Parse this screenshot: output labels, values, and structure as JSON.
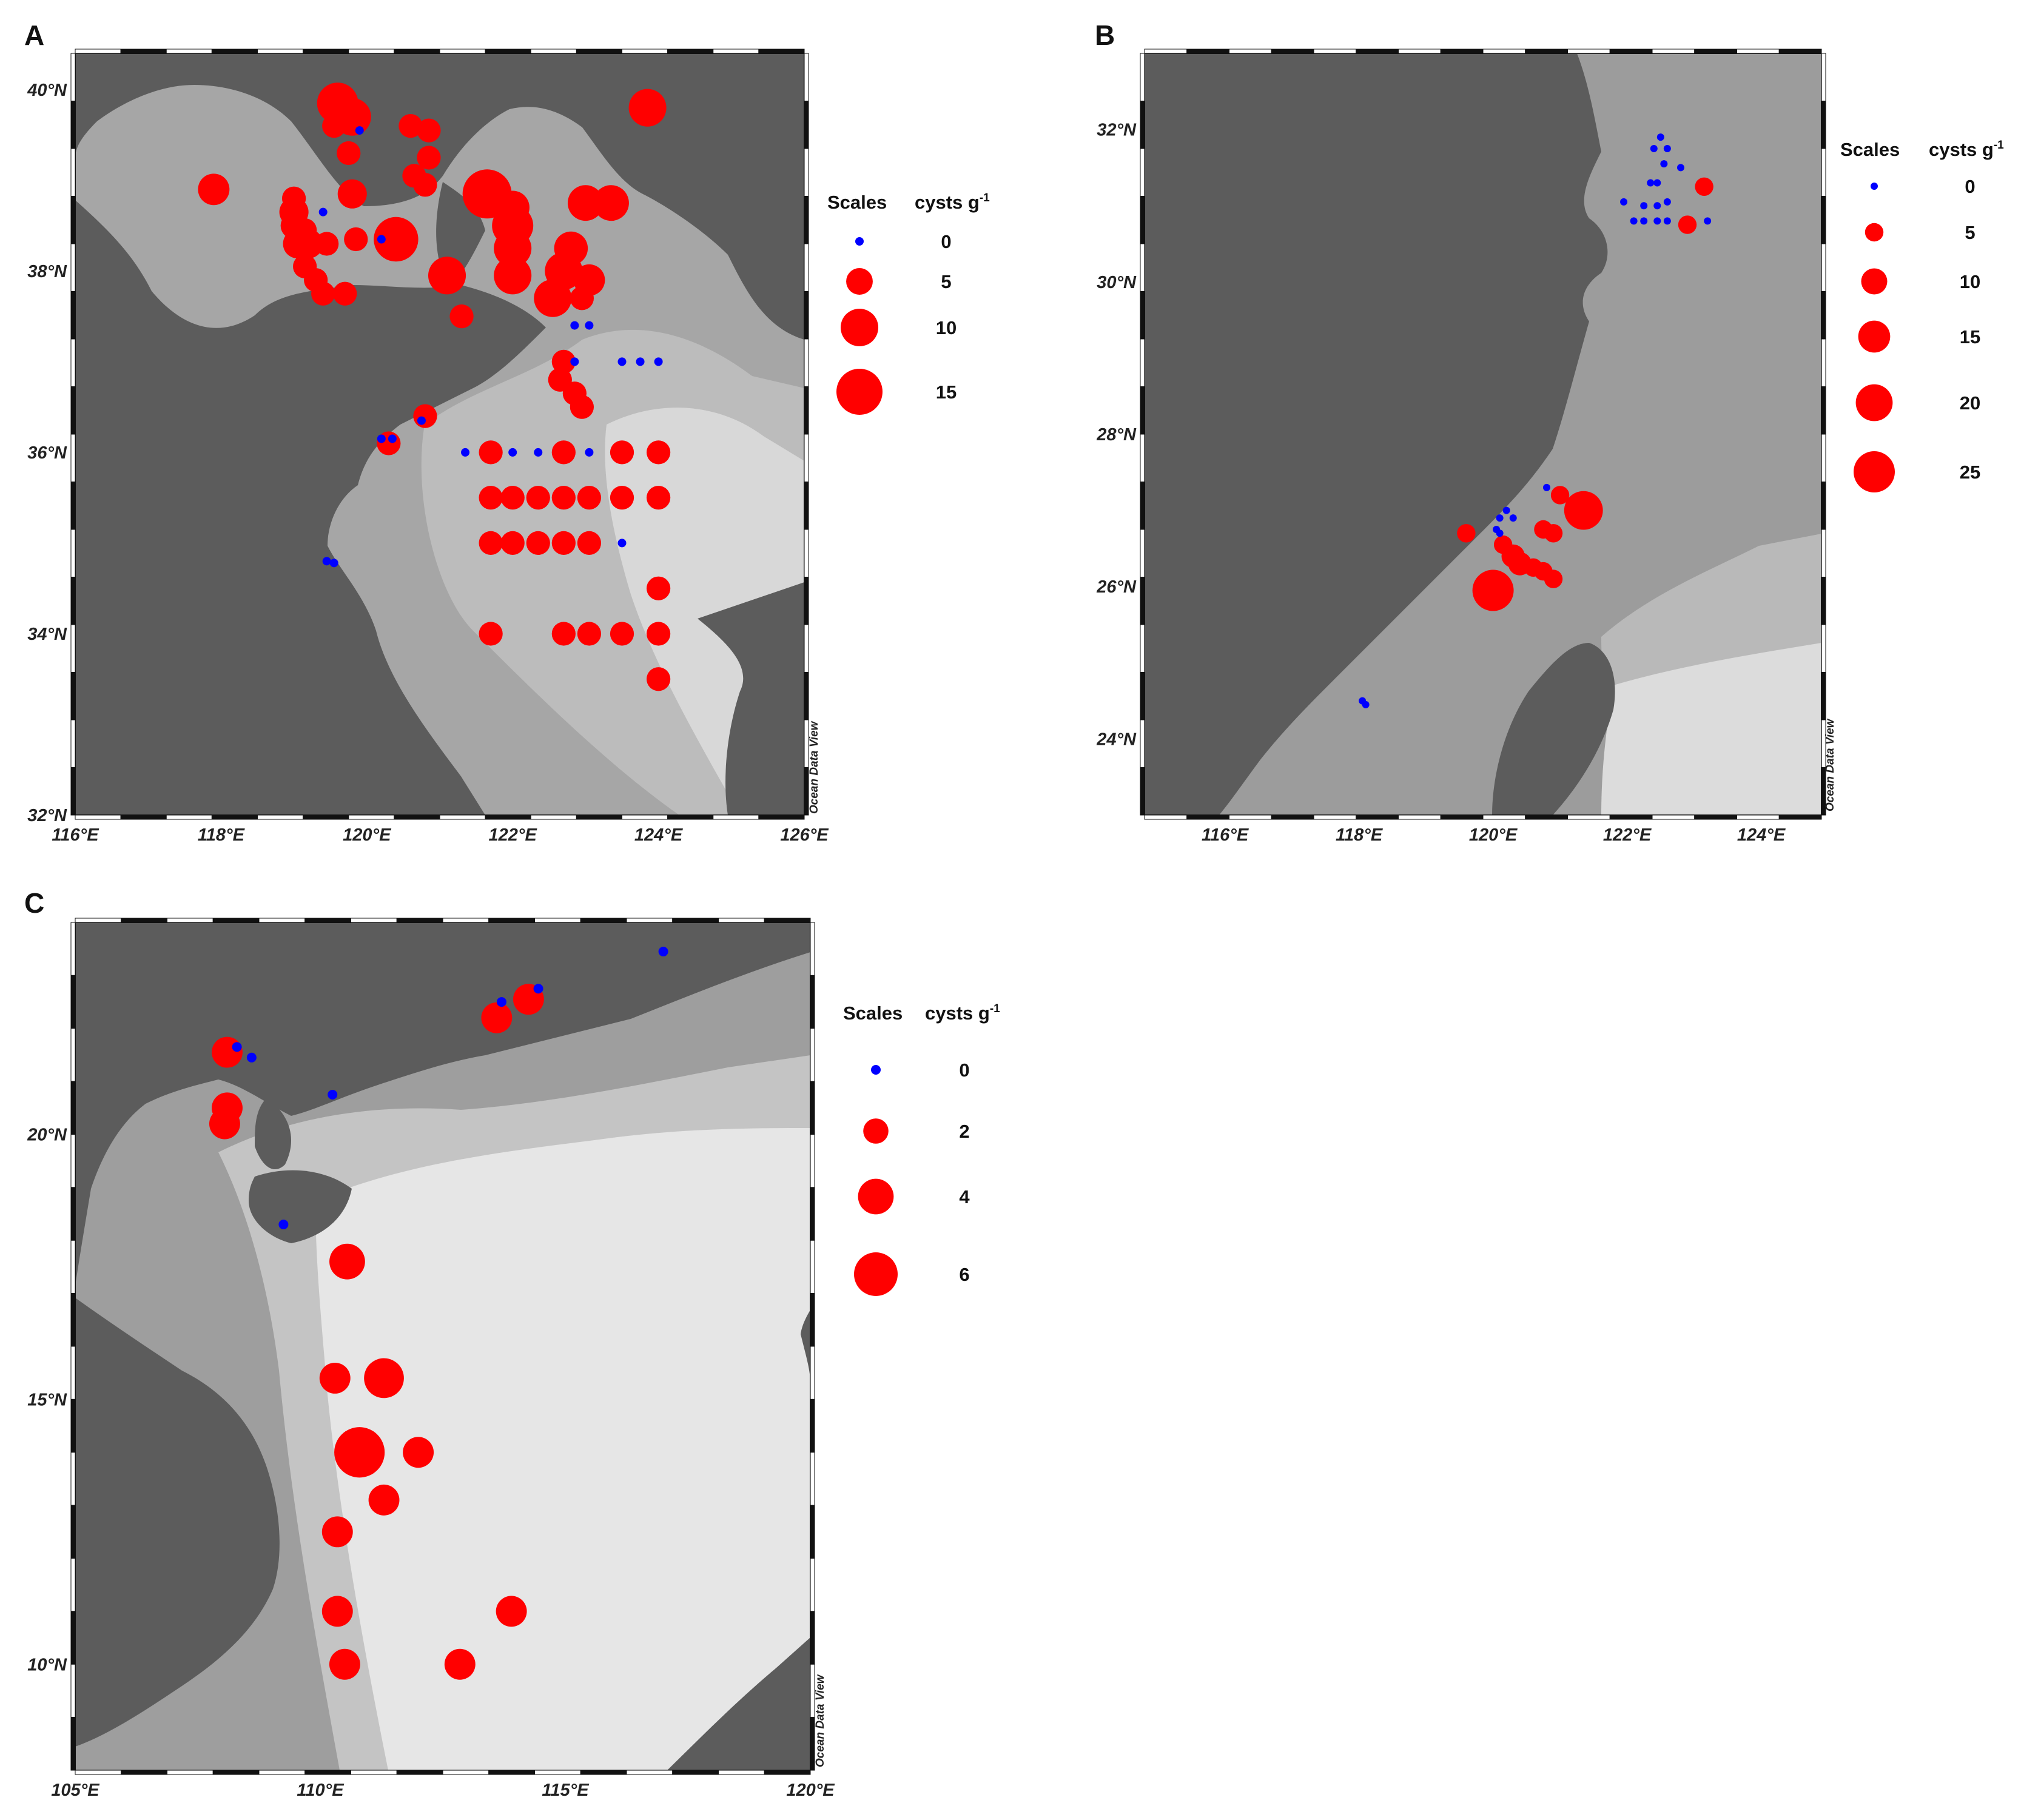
{
  "colors": {
    "land": "#5c5c5c",
    "sea_shallow": "#9a9a9a",
    "sea_mid": "#bdbdbd",
    "sea_deep": "#e3e3e3",
    "positive": "#ff0000",
    "zero": "#0000ff",
    "frame": "#111111"
  },
  "watermark": "Ocean Data View",
  "legend_labels": {
    "scales": "Scales",
    "unit_prefix": "cysts g",
    "unit_sup": "-1"
  },
  "panels": [
    {
      "id": "A",
      "letter": "A",
      "lon_range": [
        116,
        126
      ],
      "lat_range": [
        32,
        40.4
      ],
      "x_ticks": [
        "116°E",
        "118°E",
        "120°E",
        "122°E",
        "124°E",
        "126°E"
      ],
      "x_tick_values": [
        116,
        118,
        120,
        122,
        124,
        126
      ],
      "y_ticks": [
        "32°N",
        "34°N",
        "36°N",
        "38°N",
        "40°N"
      ],
      "y_tick_values": [
        32,
        34,
        36,
        38,
        40
      ],
      "legend": {
        "values": [
          "0",
          "5",
          "10",
          "15"
        ],
        "numbers": [
          0,
          5,
          10,
          15
        ]
      },
      "stations": [
        {
          "lon": 119.6,
          "lat": 39.85,
          "v": 12
        },
        {
          "lon": 119.8,
          "lat": 39.7,
          "v": 10
        },
        {
          "lon": 119.9,
          "lat": 39.55,
          "v": 0
        },
        {
          "lon": 119.55,
          "lat": 39.6,
          "v": 4
        },
        {
          "lon": 119.75,
          "lat": 39.3,
          "v": 4
        },
        {
          "lon": 119.8,
          "lat": 38.85,
          "v": 6
        },
        {
          "lon": 119.4,
          "lat": 38.65,
          "v": 0
        },
        {
          "lon": 117.9,
          "lat": 38.9,
          "v": 7
        },
        {
          "lon": 119.0,
          "lat": 38.8,
          "v": 4
        },
        {
          "lon": 119.0,
          "lat": 38.65,
          "v": 6
        },
        {
          "lon": 119.0,
          "lat": 38.5,
          "v": 5
        },
        {
          "lon": 119.15,
          "lat": 38.45,
          "v": 4
        },
        {
          "lon": 119.05,
          "lat": 38.3,
          "v": 6
        },
        {
          "lon": 119.2,
          "lat": 38.3,
          "v": 6
        },
        {
          "lon": 119.45,
          "lat": 38.3,
          "v": 4
        },
        {
          "lon": 119.85,
          "lat": 38.35,
          "v": 4
        },
        {
          "lon": 120.2,
          "lat": 38.35,
          "v": 0
        },
        {
          "lon": 119.15,
          "lat": 38.05,
          "v": 4
        },
        {
          "lon": 119.3,
          "lat": 37.9,
          "v": 4
        },
        {
          "lon": 119.4,
          "lat": 37.75,
          "v": 4
        },
        {
          "lon": 119.7,
          "lat": 37.75,
          "v": 4
        },
        {
          "lon": 120.4,
          "lat": 38.35,
          "v": 14
        },
        {
          "lon": 120.6,
          "lat": 39.6,
          "v": 4
        },
        {
          "lon": 120.85,
          "lat": 39.55,
          "v": 4
        },
        {
          "lon": 120.85,
          "lat": 39.25,
          "v": 4
        },
        {
          "lon": 120.65,
          "lat": 39.05,
          "v": 4
        },
        {
          "lon": 120.8,
          "lat": 38.95,
          "v": 4
        },
        {
          "lon": 121.1,
          "lat": 37.95,
          "v": 10
        },
        {
          "lon": 121.3,
          "lat": 37.5,
          "v": 4
        },
        {
          "lon": 121.65,
          "lat": 38.85,
          "v": 17
        },
        {
          "lon": 122.0,
          "lat": 38.7,
          "v": 8
        },
        {
          "lon": 122.0,
          "lat": 38.5,
          "v": 12
        },
        {
          "lon": 122.0,
          "lat": 38.25,
          "v": 10
        },
        {
          "lon": 122.0,
          "lat": 37.95,
          "v": 10
        },
        {
          "lon": 122.55,
          "lat": 37.7,
          "v": 10
        },
        {
          "lon": 122.7,
          "lat": 38.0,
          "v": 10
        },
        {
          "lon": 122.8,
          "lat": 38.25,
          "v": 8
        },
        {
          "lon": 123.0,
          "lat": 38.75,
          "v": 9
        },
        {
          "lon": 123.35,
          "lat": 38.75,
          "v": 9
        },
        {
          "lon": 123.05,
          "lat": 37.9,
          "v": 7
        },
        {
          "lon": 122.95,
          "lat": 37.7,
          "v": 4
        },
        {
          "lon": 123.85,
          "lat": 39.8,
          "v": 10
        },
        {
          "lon": 122.85,
          "lat": 37.4,
          "v": 0
        },
        {
          "lon": 123.05,
          "lat": 37.4,
          "v": 0
        },
        {
          "lon": 122.7,
          "lat": 37.0,
          "v": 4
        },
        {
          "lon": 122.85,
          "lat": 37.0,
          "v": 0
        },
        {
          "lon": 122.65,
          "lat": 36.8,
          "v": 4
        },
        {
          "lon": 122.85,
          "lat": 36.65,
          "v": 4
        },
        {
          "lon": 122.95,
          "lat": 36.5,
          "v": 4
        },
        {
          "lon": 123.5,
          "lat": 37.0,
          "v": 0
        },
        {
          "lon": 123.75,
          "lat": 37.0,
          "v": 0
        },
        {
          "lon": 124.0,
          "lat": 37.0,
          "v": 0
        },
        {
          "lon": 120.2,
          "lat": 36.15,
          "v": 0
        },
        {
          "lon": 120.3,
          "lat": 36.1,
          "v": 4
        },
        {
          "lon": 120.35,
          "lat": 36.15,
          "v": 0
        },
        {
          "lon": 120.75,
          "lat": 36.35,
          "v": 0
        },
        {
          "lon": 120.8,
          "lat": 36.4,
          "v": 4
        },
        {
          "lon": 121.35,
          "lat": 36.0,
          "v": 0
        },
        {
          "lon": 121.7,
          "lat": 36.0,
          "v": 4
        },
        {
          "lon": 122.0,
          "lat": 36.0,
          "v": 0
        },
        {
          "lon": 122.35,
          "lat": 36.0,
          "v": 0
        },
        {
          "lon": 122.7,
          "lat": 36.0,
          "v": 4
        },
        {
          "lon": 123.05,
          "lat": 36.0,
          "v": 0
        },
        {
          "lon": 123.5,
          "lat": 36.0,
          "v": 4
        },
        {
          "lon": 124.0,
          "lat": 36.0,
          "v": 4
        },
        {
          "lon": 121.7,
          "lat": 35.5,
          "v": 4
        },
        {
          "lon": 122.0,
          "lat": 35.5,
          "v": 4
        },
        {
          "lon": 122.35,
          "lat": 35.5,
          "v": 4
        },
        {
          "lon": 122.7,
          "lat": 35.5,
          "v": 4
        },
        {
          "lon": 123.05,
          "lat": 35.5,
          "v": 4
        },
        {
          "lon": 123.5,
          "lat": 35.5,
          "v": 4
        },
        {
          "lon": 124.0,
          "lat": 35.5,
          "v": 4
        },
        {
          "lon": 121.7,
          "lat": 35.0,
          "v": 4
        },
        {
          "lon": 122.0,
          "lat": 35.0,
          "v": 4
        },
        {
          "lon": 122.35,
          "lat": 35.0,
          "v": 4
        },
        {
          "lon": 122.7,
          "lat": 35.0,
          "v": 4
        },
        {
          "lon": 123.05,
          "lat": 35.0,
          "v": 4
        },
        {
          "lon": 123.5,
          "lat": 35.0,
          "v": 0
        },
        {
          "lon": 124.0,
          "lat": 34.5,
          "v": 4
        },
        {
          "lon": 121.7,
          "lat": 34.0,
          "v": 4
        },
        {
          "lon": 122.7,
          "lat": 34.0,
          "v": 4
        },
        {
          "lon": 123.05,
          "lat": 34.0,
          "v": 4
        },
        {
          "lon": 123.5,
          "lat": 34.0,
          "v": 4
        },
        {
          "lon": 124.0,
          "lat": 34.0,
          "v": 4
        },
        {
          "lon": 124.0,
          "lat": 33.5,
          "v": 4
        },
        {
          "lon": 119.45,
          "lat": 34.8,
          "v": 0
        },
        {
          "lon": 119.55,
          "lat": 34.78,
          "v": 0
        }
      ]
    },
    {
      "id": "B",
      "letter": "B",
      "lon_range": [
        114.8,
        124.9
      ],
      "lat_range": [
        23.0,
        33.0
      ],
      "x_ticks": [
        "116°E",
        "118°E",
        "120°E",
        "122°E",
        "124°E"
      ],
      "x_tick_values": [
        116,
        118,
        120,
        122,
        124
      ],
      "y_ticks": [
        "24°N",
        "26°N",
        "28°N",
        "30°N",
        "32°N"
      ],
      "y_tick_values": [
        24,
        26,
        28,
        30,
        32
      ],
      "legend": {
        "values": [
          "0",
          "5",
          "10",
          "15",
          "20",
          "25"
        ],
        "numbers": [
          0,
          5,
          10,
          15,
          20,
          25
        ]
      },
      "stations": [
        {
          "lon": 122.5,
          "lat": 31.9,
          "v": 0
        },
        {
          "lon": 122.4,
          "lat": 31.75,
          "v": 0
        },
        {
          "lon": 122.6,
          "lat": 31.75,
          "v": 0
        },
        {
          "lon": 122.55,
          "lat": 31.55,
          "v": 0
        },
        {
          "lon": 122.8,
          "lat": 31.5,
          "v": 0
        },
        {
          "lon": 122.35,
          "lat": 31.3,
          "v": 0
        },
        {
          "lon": 122.45,
          "lat": 31.3,
          "v": 0
        },
        {
          "lon": 121.95,
          "lat": 31.05,
          "v": 0
        },
        {
          "lon": 122.25,
          "lat": 31.0,
          "v": 0
        },
        {
          "lon": 122.45,
          "lat": 31.0,
          "v": 0
        },
        {
          "lon": 122.6,
          "lat": 31.05,
          "v": 0
        },
        {
          "lon": 122.1,
          "lat": 30.8,
          "v": 0
        },
        {
          "lon": 122.25,
          "lat": 30.8,
          "v": 0
        },
        {
          "lon": 122.45,
          "lat": 30.8,
          "v": 0
        },
        {
          "lon": 122.6,
          "lat": 30.8,
          "v": 0
        },
        {
          "lon": 123.2,
          "lat": 30.8,
          "v": 0
        },
        {
          "lon": 122.9,
          "lat": 30.75,
          "v": 5
        },
        {
          "lon": 123.15,
          "lat": 31.25,
          "v": 5
        },
        {
          "lon": 121.35,
          "lat": 27.0,
          "v": 22
        },
        {
          "lon": 120.0,
          "lat": 25.95,
          "v": 25
        },
        {
          "lon": 120.8,
          "lat": 27.3,
          "v": 0
        },
        {
          "lon": 121.0,
          "lat": 27.2,
          "v": 5
        },
        {
          "lon": 120.2,
          "lat": 27.0,
          "v": 0
        },
        {
          "lon": 120.1,
          "lat": 26.9,
          "v": 0
        },
        {
          "lon": 120.3,
          "lat": 26.9,
          "v": 0
        },
        {
          "lon": 120.05,
          "lat": 26.75,
          "v": 0
        },
        {
          "lon": 120.1,
          "lat": 26.7,
          "v": 0
        },
        {
          "lon": 119.6,
          "lat": 26.7,
          "v": 5
        },
        {
          "lon": 120.75,
          "lat": 26.75,
          "v": 5
        },
        {
          "lon": 120.9,
          "lat": 26.7,
          "v": 5
        },
        {
          "lon": 120.15,
          "lat": 26.55,
          "v": 5
        },
        {
          "lon": 120.3,
          "lat": 26.4,
          "v": 8
        },
        {
          "lon": 120.4,
          "lat": 26.3,
          "v": 8
        },
        {
          "lon": 120.6,
          "lat": 26.25,
          "v": 5
        },
        {
          "lon": 120.75,
          "lat": 26.2,
          "v": 5
        },
        {
          "lon": 120.9,
          "lat": 26.1,
          "v": 5
        },
        {
          "lon": 118.05,
          "lat": 24.5,
          "v": 0
        },
        {
          "lon": 118.1,
          "lat": 24.45,
          "v": 0
        }
      ]
    },
    {
      "id": "C",
      "letter": "C",
      "lon_range": [
        105,
        120
      ],
      "lat_range": [
        8.0,
        24.0
      ],
      "x_ticks": [
        "105°E",
        "110°E",
        "115°E",
        "120°E"
      ],
      "x_tick_values": [
        105,
        110,
        115,
        120
      ],
      "y_ticks": [
        "10°N",
        "15°N",
        "20°N"
      ],
      "y_tick_values": [
        10,
        15,
        20
      ],
      "legend": {
        "values": [
          "0",
          "2",
          "4",
          "6"
        ],
        "numbers": [
          0,
          2,
          4,
          6
        ]
      },
      "stations": [
        {
          "lon": 108.1,
          "lat": 21.55,
          "v": 3
        },
        {
          "lon": 108.3,
          "lat": 21.65,
          "v": 0
        },
        {
          "lon": 108.6,
          "lat": 21.45,
          "v": 0
        },
        {
          "lon": 108.1,
          "lat": 20.5,
          "v": 3
        },
        {
          "lon": 108.05,
          "lat": 20.2,
          "v": 3
        },
        {
          "lon": 109.25,
          "lat": 18.3,
          "v": 0
        },
        {
          "lon": 110.25,
          "lat": 20.75,
          "v": 0
        },
        {
          "lon": 113.6,
          "lat": 22.2,
          "v": 3
        },
        {
          "lon": 113.7,
          "lat": 22.5,
          "v": 0
        },
        {
          "lon": 114.25,
          "lat": 22.55,
          "v": 3
        },
        {
          "lon": 114.45,
          "lat": 22.75,
          "v": 0
        },
        {
          "lon": 117.0,
          "lat": 23.45,
          "v": 0
        },
        {
          "lon": 110.55,
          "lat": 17.6,
          "v": 4
        },
        {
          "lon": 110.3,
          "lat": 15.4,
          "v": 3
        },
        {
          "lon": 111.3,
          "lat": 15.4,
          "v": 5
        },
        {
          "lon": 110.8,
          "lat": 14.0,
          "v": 8
        },
        {
          "lon": 112.0,
          "lat": 14.0,
          "v": 3
        },
        {
          "lon": 111.3,
          "lat": 13.1,
          "v": 3
        },
        {
          "lon": 110.35,
          "lat": 12.5,
          "v": 3
        },
        {
          "lon": 110.35,
          "lat": 11.0,
          "v": 3
        },
        {
          "lon": 113.9,
          "lat": 11.0,
          "v": 3
        },
        {
          "lon": 110.5,
          "lat": 10.0,
          "v": 3
        },
        {
          "lon": 112.85,
          "lat": 10.0,
          "v": 3
        }
      ]
    }
  ]
}
